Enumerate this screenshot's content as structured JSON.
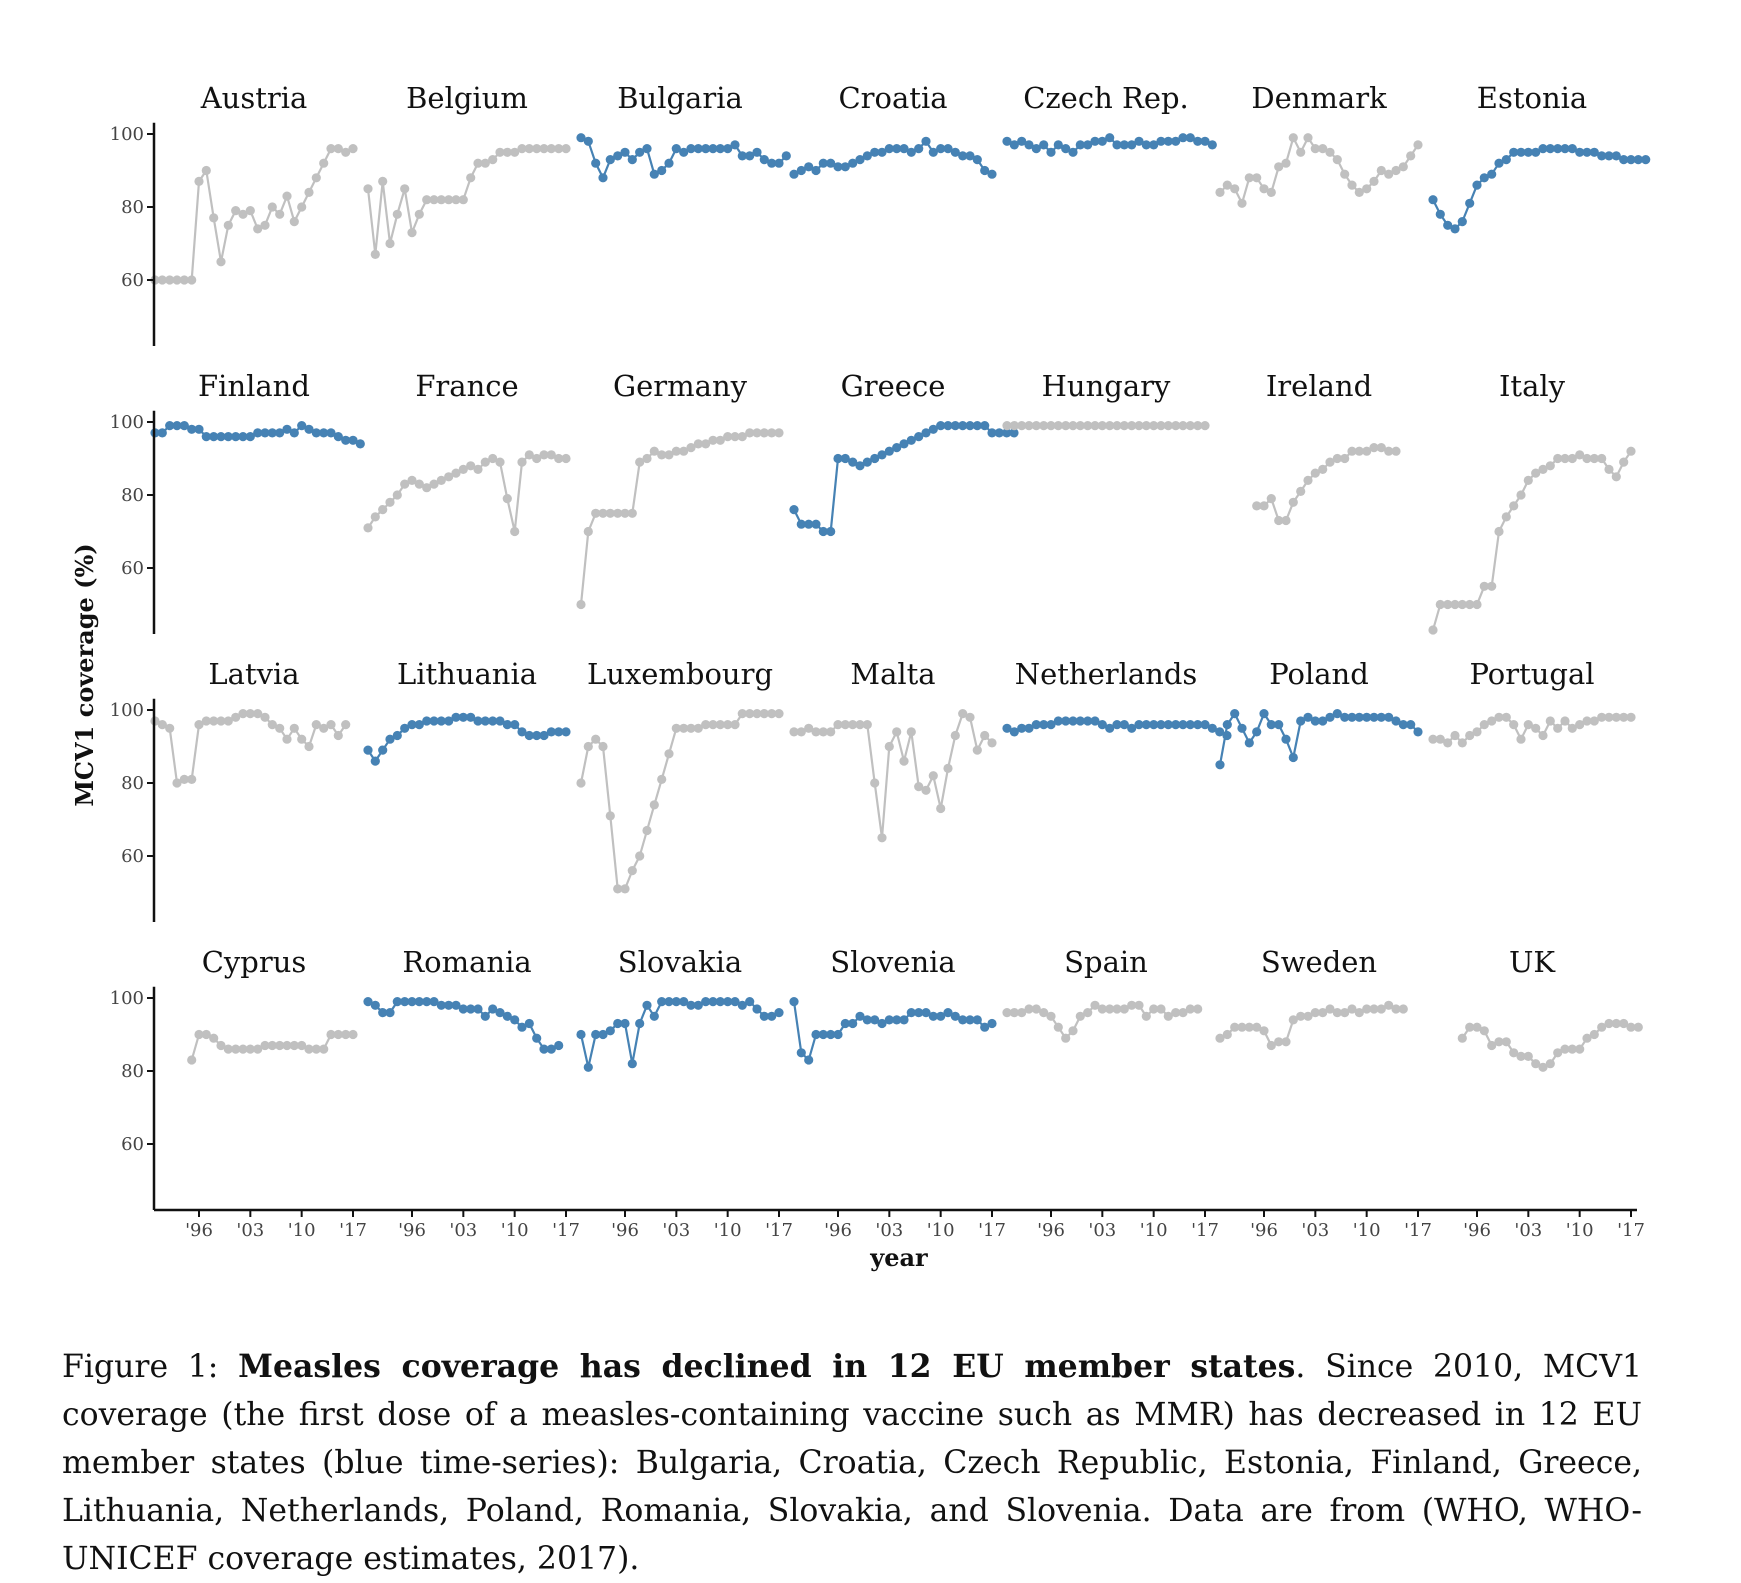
{
  "chart_data": {
    "type": "line",
    "small_multiples": true,
    "xlabel": "year",
    "ylabel": "MCV1 coverage (%)",
    "x_start_year": 1990,
    "x_end_year": 2017,
    "xticks": [
      1996,
      2003,
      2010,
      2017
    ],
    "xtick_labels": [
      "'96",
      "'03",
      "'10",
      "'17"
    ],
    "yticks": [
      60,
      80,
      100
    ],
    "ytick_labels": [
      "60",
      "80",
      "100"
    ],
    "ylim": [
      40,
      102
    ],
    "colors": {
      "declined": "#4682b4",
      "other": "#c0c0c0"
    },
    "panels": [
      {
        "country": "Austria",
        "declined": false,
        "start": 1990,
        "values": [
          60,
          60,
          60,
          60,
          60,
          60,
          87,
          90,
          77,
          65,
          75,
          79,
          78,
          79,
          74,
          75,
          80,
          78,
          83,
          76,
          80,
          84,
          88,
          92,
          96,
          96,
          95,
          96
        ]
      },
      {
        "country": "Belgium",
        "declined": false,
        "start": 1990,
        "values": [
          85,
          67,
          87,
          70,
          78,
          85,
          73,
          78,
          82,
          82,
          82,
          82,
          82,
          82,
          88,
          92,
          92,
          93,
          95,
          95,
          95,
          96,
          96,
          96,
          96,
          96,
          96,
          96
        ]
      },
      {
        "country": "Bulgaria",
        "declined": true,
        "start": 1990,
        "values": [
          99,
          98,
          92,
          88,
          93,
          94,
          95,
          93,
          95,
          96,
          89,
          90,
          92,
          96,
          95,
          96,
          96,
          96,
          96,
          96,
          96,
          97,
          94,
          94,
          95,
          93,
          92,
          92,
          94
        ]
      },
      {
        "country": "Croatia",
        "declined": true,
        "start": 1990,
        "values": [
          89,
          90,
          91,
          90,
          92,
          92,
          91,
          91,
          92,
          93,
          94,
          95,
          95,
          96,
          96,
          96,
          95,
          96,
          98,
          95,
          96,
          96,
          95,
          94,
          94,
          93,
          90,
          89
        ]
      },
      {
        "country": "Czech Rep.",
        "declined": true,
        "start": 1990,
        "values": [
          98,
          97,
          98,
          97,
          96,
          97,
          95,
          97,
          96,
          95,
          97,
          97,
          98,
          98,
          99,
          97,
          97,
          97,
          98,
          97,
          97,
          98,
          98,
          98,
          99,
          99,
          98,
          98,
          97
        ]
      },
      {
        "country": "Denmark",
        "declined": false,
        "start": 1990,
        "values": [
          84,
          86,
          85,
          81,
          88,
          88,
          85,
          84,
          91,
          92,
          99,
          95,
          99,
          96,
          96,
          95,
          93,
          89,
          86,
          84,
          85,
          87,
          90,
          89,
          90,
          91,
          94,
          97
        ]
      },
      {
        "country": "Estonia",
        "declined": true,
        "start": 1990,
        "values": [
          82,
          78,
          75,
          74,
          76,
          81,
          86,
          88,
          89,
          92,
          93,
          95,
          95,
          95,
          95,
          96,
          96,
          96,
          96,
          96,
          95,
          95,
          95,
          94,
          94,
          94,
          93,
          93,
          93,
          93
        ]
      },
      {
        "country": "Finland",
        "declined": true,
        "start": 1990,
        "values": [
          97,
          97,
          99,
          99,
          99,
          98,
          98,
          96,
          96,
          96,
          96,
          96,
          96,
          96,
          97,
          97,
          97,
          97,
          98,
          97,
          99,
          98,
          97,
          97,
          97,
          96,
          95,
          95,
          94
        ]
      },
      {
        "country": "France",
        "declined": false,
        "start": 1990,
        "values": [
          71,
          74,
          76,
          78,
          80,
          83,
          84,
          83,
          82,
          83,
          84,
          85,
          86,
          87,
          88,
          87,
          89,
          90,
          89,
          79,
          70,
          89,
          91,
          90,
          91,
          91,
          90,
          90
        ]
      },
      {
        "country": "Germany",
        "declined": false,
        "start": 1990,
        "values": [
          50,
          70,
          75,
          75,
          75,
          75,
          75,
          75,
          89,
          90,
          92,
          91,
          91,
          92,
          92,
          93,
          94,
          94,
          95,
          95,
          96,
          96,
          96,
          97,
          97,
          97,
          97,
          97
        ]
      },
      {
        "country": "Greece",
        "declined": true,
        "start": 1990,
        "values": [
          76,
          72,
          72,
          72,
          70,
          70,
          90,
          90,
          89,
          88,
          89,
          90,
          91,
          92,
          93,
          94,
          95,
          96,
          97,
          98,
          99,
          99,
          99,
          99,
          99,
          99,
          99,
          97,
          97,
          97,
          97
        ]
      },
      {
        "country": "Hungary",
        "declined": false,
        "start": 1990,
        "values": [
          99,
          99,
          99,
          99,
          99,
          99,
          99,
          99,
          99,
          99,
          99,
          99,
          99,
          99,
          99,
          99,
          99,
          99,
          99,
          99,
          99,
          99,
          99,
          99,
          99,
          99,
          99,
          99
        ]
      },
      {
        "country": "Ireland",
        "declined": false,
        "start": 1995,
        "values": [
          77,
          77,
          79,
          73,
          73,
          78,
          81,
          84,
          86,
          87,
          89,
          90,
          90,
          92,
          92,
          92,
          93,
          93,
          92,
          92
        ]
      },
      {
        "country": "Italy",
        "declined": false,
        "start": 1990,
        "values": [
          43,
          50,
          50,
          50,
          50,
          50,
          50,
          55,
          55,
          70,
          74,
          77,
          80,
          84,
          86,
          87,
          88,
          90,
          90,
          90,
          91,
          90,
          90,
          90,
          87,
          85,
          89,
          92
        ]
      },
      {
        "country": "Latvia",
        "declined": false,
        "start": 1990,
        "values": [
          97,
          96,
          95,
          80,
          81,
          81,
          96,
          97,
          97,
          97,
          97,
          98,
          99,
          99,
          99,
          98,
          96,
          95,
          92,
          95,
          92,
          90,
          96,
          95,
          96,
          93,
          96
        ]
      },
      {
        "country": "Lithuania",
        "declined": true,
        "start": 1990,
        "values": [
          89,
          86,
          89,
          92,
          93,
          95,
          96,
          96,
          97,
          97,
          97,
          97,
          98,
          98,
          98,
          97,
          97,
          97,
          97,
          96,
          96,
          94,
          93,
          93,
          93,
          94,
          94,
          94
        ]
      },
      {
        "country": "Luxembourg",
        "declined": false,
        "start": 1990,
        "values": [
          80,
          90,
          92,
          90,
          71,
          51,
          51,
          56,
          60,
          67,
          74,
          81,
          88,
          95,
          95,
          95,
          95,
          96,
          96,
          96,
          96,
          96,
          99,
          99,
          99,
          99,
          99,
          99
        ]
      },
      {
        "country": "Malta",
        "declined": false,
        "start": 1990,
        "values": [
          94,
          94,
          95,
          94,
          94,
          94,
          96,
          96,
          96,
          96,
          96,
          80,
          65,
          90,
          94,
          86,
          94,
          79,
          78,
          82,
          73,
          84,
          93,
          99,
          98,
          89,
          93,
          91
        ]
      },
      {
        "country": "Netherlands",
        "declined": true,
        "start": 1990,
        "values": [
          95,
          94,
          95,
          95,
          96,
          96,
          96,
          97,
          97,
          97,
          97,
          97,
          97,
          96,
          95,
          96,
          96,
          95,
          96,
          96,
          96,
          96,
          96,
          96,
          96,
          96,
          96,
          96,
          95,
          94,
          93
        ]
      },
      {
        "country": "Poland",
        "declined": true,
        "start": 1990,
        "values": [
          85,
          96,
          99,
          95,
          91,
          94,
          99,
          96,
          96,
          92,
          87,
          97,
          98,
          97,
          97,
          98,
          99,
          98,
          98,
          98,
          98,
          98,
          98,
          98,
          97,
          96,
          96,
          94
        ]
      },
      {
        "country": "Portugal",
        "declined": false,
        "start": 1990,
        "values": [
          92,
          92,
          91,
          93,
          91,
          93,
          94,
          96,
          97,
          98,
          98,
          96,
          92,
          96,
          95,
          93,
          97,
          95,
          97,
          95,
          96,
          97,
          97,
          98,
          98,
          98,
          98,
          98
        ]
      },
      {
        "country": "Cyprus",
        "declined": false,
        "start": 1995,
        "values": [
          83,
          90,
          90,
          89,
          87,
          86,
          86,
          86,
          86,
          86,
          87,
          87,
          87,
          87,
          87,
          87,
          86,
          86,
          86,
          90,
          90,
          90,
          90
        ]
      },
      {
        "country": "Romania",
        "declined": true,
        "start": 1990,
        "values": [
          99,
          98,
          96,
          96,
          99,
          99,
          99,
          99,
          99,
          99,
          98,
          98,
          98,
          97,
          97,
          97,
          95,
          97,
          96,
          95,
          94,
          92,
          93,
          89,
          86,
          86,
          87
        ]
      },
      {
        "country": "Slovakia",
        "declined": true,
        "start": 1990,
        "values": [
          90,
          81,
          90,
          90,
          91,
          93,
          93,
          82,
          93,
          98,
          95,
          99,
          99,
          99,
          99,
          98,
          98,
          99,
          99,
          99,
          99,
          99,
          98,
          99,
          97,
          95,
          95,
          96
        ]
      },
      {
        "country": "Slovenia",
        "declined": true,
        "start": 1990,
        "values": [
          99,
          85,
          83,
          90,
          90,
          90,
          90,
          93,
          93,
          95,
          94,
          94,
          93,
          94,
          94,
          94,
          96,
          96,
          96,
          95,
          95,
          96,
          95,
          94,
          94,
          94,
          92,
          93
        ]
      },
      {
        "country": "Spain",
        "declined": false,
        "start": 1990,
        "values": [
          96,
          96,
          96,
          97,
          97,
          96,
          95,
          92,
          89,
          91,
          95,
          96,
          98,
          97,
          97,
          97,
          97,
          98,
          98,
          95,
          97,
          97,
          95,
          96,
          96,
          97,
          97
        ]
      },
      {
        "country": "Sweden",
        "declined": false,
        "start": 1990,
        "values": [
          89,
          90,
          92,
          92,
          92,
          92,
          91,
          87,
          88,
          88,
          94,
          95,
          95,
          96,
          96,
          97,
          96,
          96,
          97,
          96,
          97,
          97,
          97,
          98,
          97,
          97
        ]
      },
      {
        "country": "UK",
        "declined": false,
        "start": 1994,
        "values": [
          89,
          92,
          92,
          91,
          87,
          88,
          88,
          85,
          84,
          84,
          82,
          81,
          82,
          85,
          86,
          86,
          86,
          89,
          90,
          92,
          93,
          93,
          93,
          92,
          92
        ]
      }
    ]
  },
  "caption": {
    "prefix": "Figure 1: ",
    "bold": "Measles coverage has declined in 12 EU member states",
    "rest": ". Since 2010, MCV1 coverage (the first dose of a measles-containing vaccine such as MMR) has decreased in 12 EU member states (blue time-series): Bulgaria, Croatia, Czech Republic, Estonia, Finland, Greece, Lithuania, Netherlands, Poland, Romania, Slovakia, and Slovenia. Data are from (WHO, WHO-UNICEF coverage estimates, 2017)."
  }
}
